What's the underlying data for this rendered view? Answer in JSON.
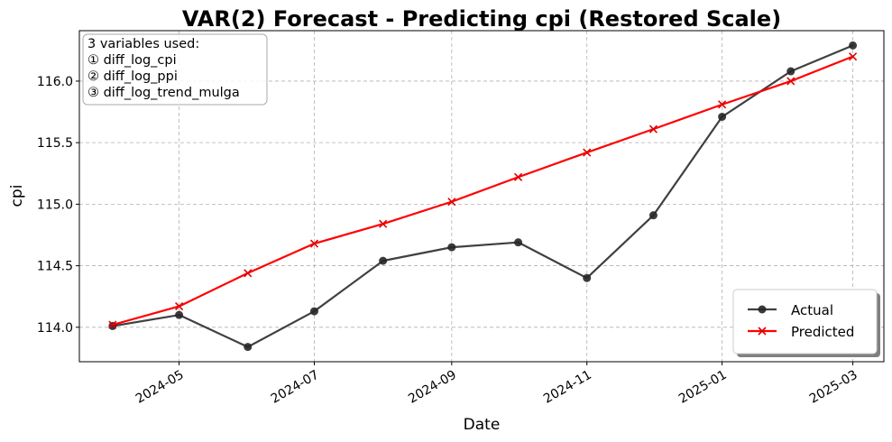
{
  "chart_data": {
    "type": "line",
    "title": "VAR(2) Forecast - Predicting cpi (Restored Scale)",
    "xlabel": "Date",
    "ylabel": "cpi",
    "x": [
      "2024-04-01",
      "2024-05-01",
      "2024-06-01",
      "2024-07-01",
      "2024-08-01",
      "2024-09-01",
      "2024-10-01",
      "2024-11-01",
      "2024-12-01",
      "2025-01-01",
      "2025-02-01",
      "2025-03-01"
    ],
    "x_ticks": [
      "2024-05",
      "2024-07",
      "2024-09",
      "2024-11",
      "2025-01",
      "2025-03"
    ],
    "y_ticks": [
      "114.0",
      "114.5",
      "115.0",
      "115.5",
      "116.0"
    ],
    "ylim": [
      113.72,
      116.41
    ],
    "xlim": [
      "2024-03-17",
      "2025-03-15"
    ],
    "grid": true,
    "legend_position": "lower right",
    "series": [
      {
        "name": "Actual",
        "color": "#404040",
        "marker": "circle",
        "values": [
          114.01,
          114.1,
          113.84,
          114.13,
          114.54,
          114.65,
          114.69,
          114.4,
          114.91,
          115.71,
          116.08,
          116.29
        ]
      },
      {
        "name": "Predicted",
        "color": "#ff0000",
        "marker": "x",
        "values": [
          114.02,
          114.17,
          114.44,
          114.68,
          114.84,
          115.02,
          115.22,
          115.42,
          115.61,
          115.81,
          116.0,
          116.2
        ]
      }
    ],
    "annotation": {
      "lines": [
        "3 variables used:",
        "① diff_log_cpi",
        "② diff_log_ppi",
        "③ diff_log_trend_mulga"
      ]
    }
  }
}
